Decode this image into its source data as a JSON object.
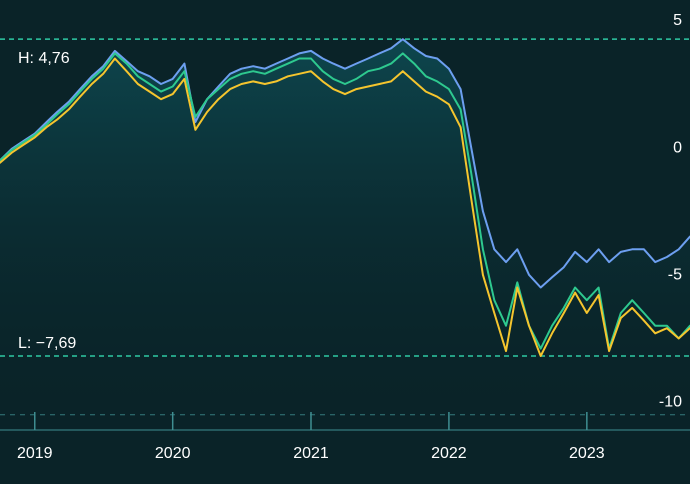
{
  "chart_data": {
    "type": "line",
    "x_range": [
      "2018-10-01",
      "2023-10-01"
    ],
    "y_range": [
      -10.6,
      6.3
    ],
    "y_ticks": [
      {
        "value": 5,
        "label": "5"
      },
      {
        "value": 0,
        "label": "0"
      },
      {
        "value": -5,
        "label": "-5"
      },
      {
        "value": -10,
        "label": "-10"
      }
    ],
    "x_ticks": [
      {
        "value": "2019-01-01",
        "label": "2019"
      },
      {
        "value": "2020-01-01",
        "label": "2020"
      },
      {
        "value": "2021-01-01",
        "label": "2021"
      },
      {
        "value": "2022-01-01",
        "label": "2022"
      },
      {
        "value": "2023-01-01",
        "label": "2023"
      }
    ],
    "high": {
      "label": "H: 4,76",
      "value": 4.76
    },
    "low": {
      "label": "L: −7,69",
      "value": -7.69
    },
    "grid": false,
    "colors": {
      "background": "#0a2328",
      "area_fill": "#0e4a52",
      "reference_line": "#2ec9a4",
      "axis_line": "#3f8f92"
    },
    "series": [
      {
        "color": "#6d9ff0",
        "points": [
          [
            "2018-10-01",
            0.0
          ],
          [
            "2018-11-01",
            0.45
          ],
          [
            "2018-12-01",
            0.75
          ],
          [
            "2019-01-01",
            1.05
          ],
          [
            "2019-02-01",
            1.5
          ],
          [
            "2019-03-01",
            1.9
          ],
          [
            "2019-04-01",
            2.3
          ],
          [
            "2019-05-01",
            2.8
          ],
          [
            "2019-06-01",
            3.3
          ],
          [
            "2019-07-01",
            3.7
          ],
          [
            "2019-08-01",
            4.3
          ],
          [
            "2019-09-01",
            3.9
          ],
          [
            "2019-10-01",
            3.5
          ],
          [
            "2019-11-01",
            3.3
          ],
          [
            "2019-12-01",
            3.0
          ],
          [
            "2020-01-01",
            3.2
          ],
          [
            "2020-02-01",
            3.8
          ],
          [
            "2020-03-01",
            1.5
          ],
          [
            "2020-04-01",
            2.4
          ],
          [
            "2020-05-01",
            2.9
          ],
          [
            "2020-06-01",
            3.4
          ],
          [
            "2020-07-01",
            3.6
          ],
          [
            "2020-08-01",
            3.7
          ],
          [
            "2020-09-01",
            3.6
          ],
          [
            "2020-10-01",
            3.8
          ],
          [
            "2020-11-01",
            4.0
          ],
          [
            "2020-12-01",
            4.2
          ],
          [
            "2021-01-01",
            4.3
          ],
          [
            "2021-02-01",
            4.0
          ],
          [
            "2021-03-01",
            3.8
          ],
          [
            "2021-04-01",
            3.6
          ],
          [
            "2021-05-01",
            3.8
          ],
          [
            "2021-06-01",
            4.0
          ],
          [
            "2021-07-01",
            4.2
          ],
          [
            "2021-08-01",
            4.4
          ],
          [
            "2021-09-01",
            4.76
          ],
          [
            "2021-10-01",
            4.4
          ],
          [
            "2021-11-01",
            4.1
          ],
          [
            "2021-12-01",
            4.0
          ],
          [
            "2022-01-01",
            3.6
          ],
          [
            "2022-02-01",
            2.8
          ],
          [
            "2022-03-01",
            0.5
          ],
          [
            "2022-04-01",
            -2.0
          ],
          [
            "2022-05-01",
            -3.5
          ],
          [
            "2022-06-01",
            -4.0
          ],
          [
            "2022-07-01",
            -3.5
          ],
          [
            "2022-08-01",
            -4.5
          ],
          [
            "2022-09-01",
            -5.0
          ],
          [
            "2022-10-01",
            -4.6
          ],
          [
            "2022-11-01",
            -4.2
          ],
          [
            "2022-12-01",
            -3.6
          ],
          [
            "2023-01-01",
            -4.0
          ],
          [
            "2023-02-01",
            -3.5
          ],
          [
            "2023-03-01",
            -4.0
          ],
          [
            "2023-04-01",
            -3.6
          ],
          [
            "2023-05-01",
            -3.5
          ],
          [
            "2023-06-01",
            -3.5
          ],
          [
            "2023-07-01",
            -4.0
          ],
          [
            "2023-08-01",
            -3.8
          ],
          [
            "2023-09-01",
            -3.5
          ],
          [
            "2023-10-01",
            -3.0
          ]
        ]
      },
      {
        "color": "#2ec98f",
        "points": [
          [
            "2018-10-01",
            0.0
          ],
          [
            "2018-11-01",
            0.4
          ],
          [
            "2018-12-01",
            0.7
          ],
          [
            "2019-01-01",
            1.0
          ],
          [
            "2019-02-01",
            1.4
          ],
          [
            "2019-03-01",
            1.8
          ],
          [
            "2019-04-01",
            2.2
          ],
          [
            "2019-05-01",
            2.7
          ],
          [
            "2019-06-01",
            3.2
          ],
          [
            "2019-07-01",
            3.6
          ],
          [
            "2019-08-01",
            4.2
          ],
          [
            "2019-09-01",
            3.8
          ],
          [
            "2019-10-01",
            3.3
          ],
          [
            "2019-11-01",
            3.0
          ],
          [
            "2019-12-01",
            2.7
          ],
          [
            "2020-01-01",
            2.9
          ],
          [
            "2020-02-01",
            3.5
          ],
          [
            "2020-03-01",
            1.7
          ],
          [
            "2020-04-01",
            2.4
          ],
          [
            "2020-05-01",
            2.8
          ],
          [
            "2020-06-01",
            3.2
          ],
          [
            "2020-07-01",
            3.4
          ],
          [
            "2020-08-01",
            3.5
          ],
          [
            "2020-09-01",
            3.4
          ],
          [
            "2020-10-01",
            3.6
          ],
          [
            "2020-11-01",
            3.8
          ],
          [
            "2020-12-01",
            4.0
          ],
          [
            "2021-01-01",
            4.0
          ],
          [
            "2021-02-01",
            3.5
          ],
          [
            "2021-03-01",
            3.2
          ],
          [
            "2021-04-01",
            3.0
          ],
          [
            "2021-05-01",
            3.2
          ],
          [
            "2021-06-01",
            3.5
          ],
          [
            "2021-07-01",
            3.6
          ],
          [
            "2021-08-01",
            3.8
          ],
          [
            "2021-09-01",
            4.2
          ],
          [
            "2021-10-01",
            3.8
          ],
          [
            "2021-11-01",
            3.3
          ],
          [
            "2021-12-01",
            3.1
          ],
          [
            "2022-01-01",
            2.8
          ],
          [
            "2022-02-01",
            2.0
          ],
          [
            "2022-03-01",
            -0.5
          ],
          [
            "2022-04-01",
            -3.5
          ],
          [
            "2022-05-01",
            -5.5
          ],
          [
            "2022-06-01",
            -6.5
          ],
          [
            "2022-07-01",
            -4.8
          ],
          [
            "2022-08-01",
            -6.5
          ],
          [
            "2022-09-01",
            -7.4
          ],
          [
            "2022-10-01",
            -6.5
          ],
          [
            "2022-11-01",
            -5.8
          ],
          [
            "2022-12-01",
            -5.0
          ],
          [
            "2023-01-01",
            -5.5
          ],
          [
            "2023-02-01",
            -5.0
          ],
          [
            "2023-03-01",
            -7.4
          ],
          [
            "2023-04-01",
            -6.0
          ],
          [
            "2023-05-01",
            -5.5
          ],
          [
            "2023-06-01",
            -6.0
          ],
          [
            "2023-07-01",
            -6.5
          ],
          [
            "2023-08-01",
            -6.5
          ],
          [
            "2023-09-01",
            -7.0
          ],
          [
            "2023-10-01",
            -6.5
          ]
        ]
      },
      {
        "color": "#f5c52e",
        "points": [
          [
            "2018-10-01",
            -0.1
          ],
          [
            "2018-11-01",
            0.3
          ],
          [
            "2018-12-01",
            0.6
          ],
          [
            "2019-01-01",
            0.9
          ],
          [
            "2019-02-01",
            1.3
          ],
          [
            "2019-03-01",
            1.6
          ],
          [
            "2019-04-01",
            2.0
          ],
          [
            "2019-05-01",
            2.5
          ],
          [
            "2019-06-01",
            3.0
          ],
          [
            "2019-07-01",
            3.4
          ],
          [
            "2019-08-01",
            4.0
          ],
          [
            "2019-09-01",
            3.5
          ],
          [
            "2019-10-01",
            3.0
          ],
          [
            "2019-11-01",
            2.7
          ],
          [
            "2019-12-01",
            2.4
          ],
          [
            "2020-01-01",
            2.6
          ],
          [
            "2020-02-01",
            3.2
          ],
          [
            "2020-03-01",
            1.2
          ],
          [
            "2020-04-01",
            1.9
          ],
          [
            "2020-05-01",
            2.4
          ],
          [
            "2020-06-01",
            2.8
          ],
          [
            "2020-07-01",
            3.0
          ],
          [
            "2020-08-01",
            3.1
          ],
          [
            "2020-09-01",
            3.0
          ],
          [
            "2020-10-01",
            3.1
          ],
          [
            "2020-11-01",
            3.3
          ],
          [
            "2020-12-01",
            3.4
          ],
          [
            "2021-01-01",
            3.5
          ],
          [
            "2021-02-01",
            3.1
          ],
          [
            "2021-03-01",
            2.8
          ],
          [
            "2021-04-01",
            2.6
          ],
          [
            "2021-05-01",
            2.8
          ],
          [
            "2021-06-01",
            2.9
          ],
          [
            "2021-07-01",
            3.0
          ],
          [
            "2021-08-01",
            3.1
          ],
          [
            "2021-09-01",
            3.5
          ],
          [
            "2021-10-01",
            3.1
          ],
          [
            "2021-11-01",
            2.7
          ],
          [
            "2021-12-01",
            2.5
          ],
          [
            "2022-01-01",
            2.2
          ],
          [
            "2022-02-01",
            1.3
          ],
          [
            "2022-03-01",
            -1.5
          ],
          [
            "2022-04-01",
            -4.5
          ],
          [
            "2022-05-01",
            -6.0
          ],
          [
            "2022-06-01",
            -7.5
          ],
          [
            "2022-07-01",
            -5.0
          ],
          [
            "2022-08-01",
            -6.5
          ],
          [
            "2022-09-01",
            -7.69
          ],
          [
            "2022-10-01",
            -6.8
          ],
          [
            "2022-11-01",
            -6.0
          ],
          [
            "2022-12-01",
            -5.2
          ],
          [
            "2023-01-01",
            -6.0
          ],
          [
            "2023-02-01",
            -5.3
          ],
          [
            "2023-03-01",
            -7.5
          ],
          [
            "2023-04-01",
            -6.2
          ],
          [
            "2023-05-01",
            -5.8
          ],
          [
            "2023-06-01",
            -6.3
          ],
          [
            "2023-07-01",
            -6.8
          ],
          [
            "2023-08-01",
            -6.6
          ],
          [
            "2023-09-01",
            -7.0
          ],
          [
            "2023-10-01",
            -6.6
          ]
        ]
      }
    ]
  }
}
